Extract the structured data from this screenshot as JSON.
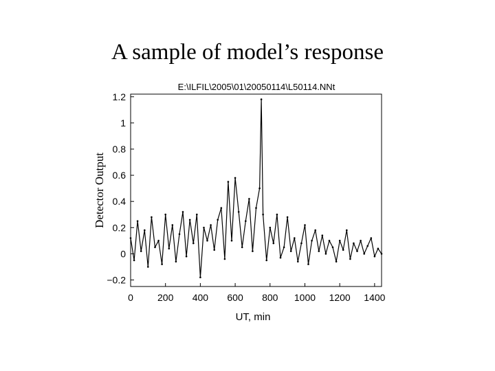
{
  "slide": {
    "title": "A sample of model’s response"
  },
  "chart_data": {
    "type": "line",
    "title": "E:\\ILFIL\\2005\\01\\20050114\\L50114.NNt",
    "xlabel": "UT, min",
    "ylabel": "Detector Output",
    "xlim": [
      0,
      1440
    ],
    "ylim": [
      -0.25,
      1.22
    ],
    "xticks": [
      "0",
      "200",
      "400",
      "600",
      "800",
      "1000",
      "1200",
      "1400"
    ],
    "yticks": [
      "-0.2",
      "0",
      "0.2",
      "0.4",
      "0.6",
      "0.8",
      "1",
      "1.2"
    ],
    "grid": false,
    "legend": "none",
    "series": [
      {
        "color": "#000000",
        "x": [
          0,
          20,
          40,
          60,
          80,
          100,
          120,
          140,
          160,
          180,
          200,
          220,
          240,
          260,
          280,
          300,
          320,
          340,
          360,
          380,
          400,
          420,
          440,
          460,
          480,
          500,
          520,
          540,
          560,
          580,
          600,
          620,
          640,
          660,
          680,
          700,
          720,
          740,
          750,
          760,
          780,
          800,
          820,
          840,
          860,
          880,
          900,
          920,
          940,
          960,
          980,
          1000,
          1020,
          1040,
          1060,
          1080,
          1100,
          1120,
          1140,
          1160,
          1180,
          1200,
          1220,
          1240,
          1260,
          1280,
          1300,
          1320,
          1340,
          1360,
          1380,
          1400,
          1420,
          1440
        ],
        "y": [
          0.12,
          -0.05,
          0.25,
          0.02,
          0.18,
          -0.1,
          0.28,
          0.05,
          0.1,
          -0.08,
          0.3,
          0.04,
          0.22,
          -0.06,
          0.15,
          0.32,
          -0.02,
          0.26,
          0.08,
          0.3,
          -0.18,
          0.2,
          0.1,
          0.22,
          0.03,
          0.26,
          0.35,
          -0.04,
          0.55,
          0.1,
          0.58,
          0.32,
          0.05,
          0.25,
          0.42,
          0.02,
          0.35,
          0.5,
          1.18,
          0.3,
          -0.05,
          0.2,
          0.08,
          0.3,
          -0.03,
          0.05,
          0.28,
          0.02,
          0.12,
          -0.06,
          0.08,
          0.22,
          -0.08,
          0.1,
          0.18,
          0.02,
          0.14,
          0.0,
          0.1,
          0.05,
          -0.06,
          0.1,
          0.03,
          0.18,
          -0.04,
          0.08,
          0.02,
          0.1,
          0.0,
          0.06,
          0.12,
          -0.02,
          0.04,
          0.0
        ]
      }
    ]
  }
}
